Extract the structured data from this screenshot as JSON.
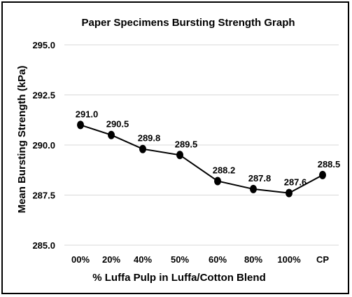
{
  "chart_data": {
    "type": "line",
    "title": "Paper Specimens Bursting Strength Graph",
    "xlabel": "% Luffa Pulp in Luffa/Cotton Blend",
    "ylabel": "Mean Bursting Strength (kPa)",
    "categories": [
      "00%",
      "20%",
      "40%",
      "50%",
      "60%",
      "80%",
      "100%",
      "CP"
    ],
    "series": [
      {
        "values": [
          291.0,
          290.5,
          289.8,
          289.5,
          288.2,
          287.8,
          287.6,
          288.5
        ],
        "data_labels": [
          "291.0",
          "290.5",
          "289.8",
          "289.5",
          "288.2",
          "287.8",
          "287.6",
          "288.5"
        ]
      }
    ],
    "ylim": [
      285.0,
      295.0
    ],
    "yticks": [
      "285.0",
      "287.5",
      "290.0",
      "292.5",
      "295.0"
    ],
    "grid": true,
    "legend": false,
    "line_color": "#000000",
    "marker_color": "#000000",
    "grid_color": "#d9d9d9"
  }
}
